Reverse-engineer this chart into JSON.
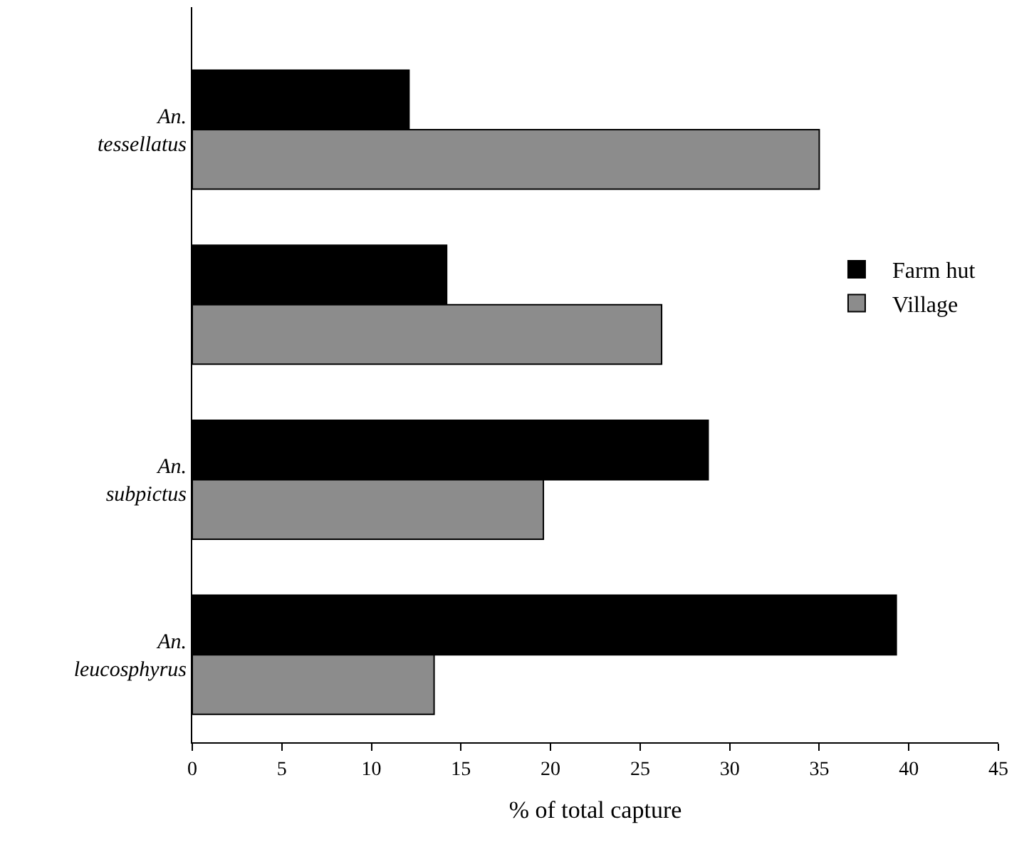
{
  "chart_data": {
    "type": "bar",
    "orientation": "horizontal",
    "xlabel": "% of total capture",
    "categories": [
      "An. tessellatus",
      null,
      "An. subpictus",
      "An. leucosphyrus"
    ],
    "series": [
      {
        "name": "Farm hut",
        "color": "#000000",
        "values": [
          12.1,
          14.2,
          28.8,
          39.3
        ]
      },
      {
        "name": "Village",
        "color": "#8c8c8c",
        "values": [
          35,
          26.2,
          19.6,
          13.5
        ]
      }
    ],
    "xlim": [
      0,
      45
    ],
    "xticks": [
      0,
      5,
      10,
      15,
      20,
      25,
      30,
      35,
      40,
      45
    ],
    "legend": "right"
  }
}
